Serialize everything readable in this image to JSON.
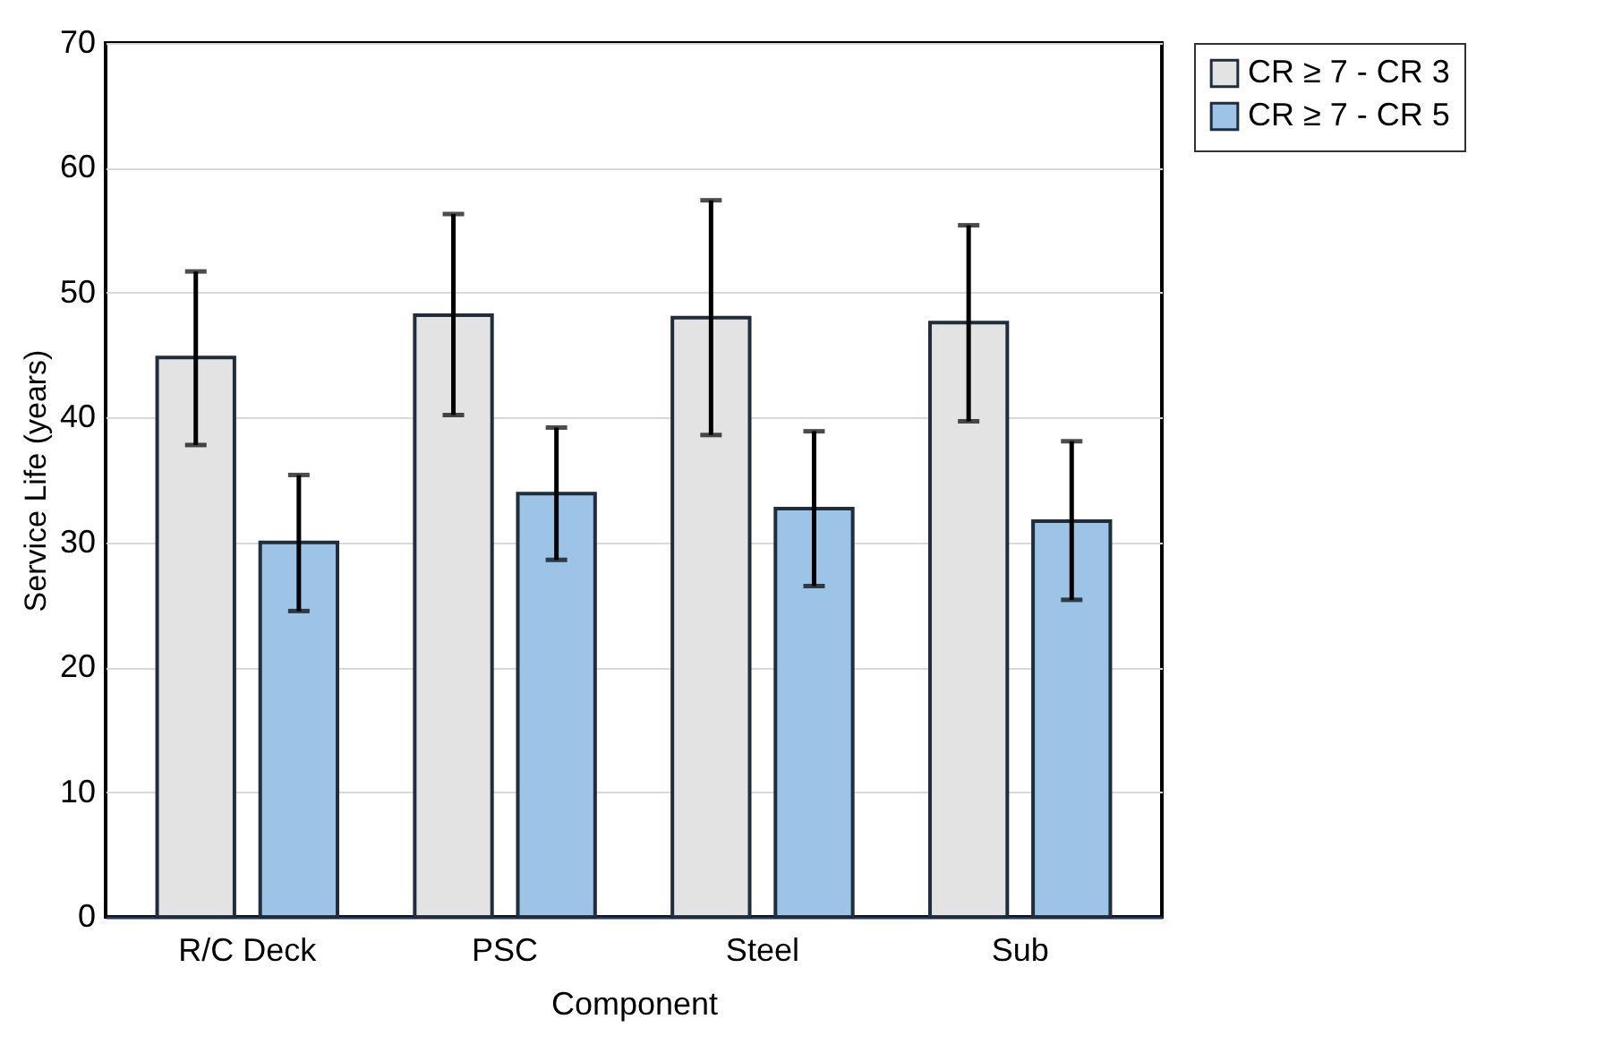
{
  "chart_data": {
    "type": "bar",
    "xlabel": "Component",
    "ylabel": "Service Life (years)",
    "categories": [
      "R/C Deck",
      "PSC",
      "Steel",
      "Sub"
    ],
    "series": [
      {
        "name": "CR ≥ 7 - CR 3",
        "color": "#e3e3e3",
        "values": [
          44.8,
          48.2,
          48.0,
          47.6
        ],
        "errors": [
          [
            37.8,
            51.7
          ],
          [
            40.2,
            56.3
          ],
          [
            38.6,
            57.4
          ],
          [
            39.7,
            55.4
          ]
        ]
      },
      {
        "name": "CR ≥ 7 - CR 5",
        "color": "#9dc3e6",
        "values": [
          30.0,
          33.9,
          32.7,
          31.7
        ],
        "errors": [
          [
            24.5,
            35.4
          ],
          [
            28.6,
            39.2
          ],
          [
            26.5,
            38.9
          ],
          [
            25.4,
            38.1
          ]
        ]
      }
    ],
    "ylim": [
      0,
      70
    ],
    "yticks": [
      0,
      10,
      20,
      30,
      40,
      50,
      60,
      70
    ],
    "grid": "y",
    "legend": "right"
  }
}
